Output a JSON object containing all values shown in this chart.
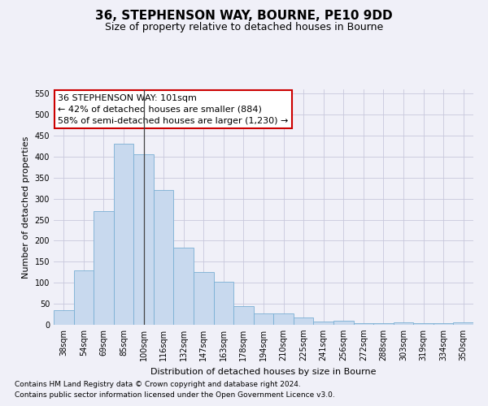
{
  "title": "36, STEPHENSON WAY, BOURNE, PE10 9DD",
  "subtitle": "Size of property relative to detached houses in Bourne",
  "xlabel": "Distribution of detached houses by size in Bourne",
  "ylabel": "Number of detached properties",
  "categories": [
    "38sqm",
    "54sqm",
    "69sqm",
    "85sqm",
    "100sqm",
    "116sqm",
    "132sqm",
    "147sqm",
    "163sqm",
    "178sqm",
    "194sqm",
    "210sqm",
    "225sqm",
    "241sqm",
    "256sqm",
    "272sqm",
    "288sqm",
    "303sqm",
    "319sqm",
    "334sqm",
    "350sqm"
  ],
  "values": [
    35,
    130,
    270,
    430,
    405,
    320,
    183,
    125,
    103,
    45,
    28,
    28,
    17,
    8,
    10,
    3,
    3,
    5,
    3,
    3,
    5
  ],
  "bar_color": "#c8d9ee",
  "bar_edge_color": "#7aafd4",
  "property_bin_index": 4,
  "annotation_line1": "36 STEPHENSON WAY: 101sqm",
  "annotation_line2": "← 42% of detached houses are smaller (884)",
  "annotation_line3": "58% of semi-detached houses are larger (1,230) →",
  "annotation_box_facecolor": "#ffffff",
  "annotation_box_edgecolor": "#cc0000",
  "vline_color": "#444444",
  "ylim": [
    0,
    560
  ],
  "yticks": [
    0,
    50,
    100,
    150,
    200,
    250,
    300,
    350,
    400,
    450,
    500,
    550
  ],
  "footnote1": "Contains HM Land Registry data © Crown copyright and database right 2024.",
  "footnote2": "Contains public sector information licensed under the Open Government Licence v3.0.",
  "background_color": "#f0f0f8",
  "grid_color": "#c8c8dc",
  "title_fontsize": 11,
  "subtitle_fontsize": 9,
  "axis_label_fontsize": 8,
  "tick_fontsize": 7,
  "footnote_fontsize": 6.5
}
